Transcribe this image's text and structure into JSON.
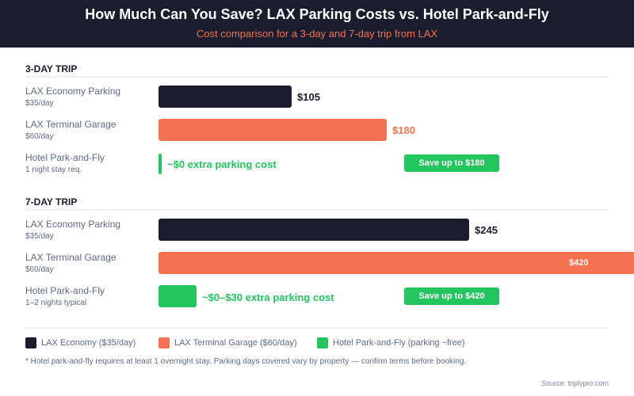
{
  "header": {
    "title": "How Much Can You Save? LAX Parking Costs vs. Hotel Park-and-Fly",
    "subtitle": "Cost comparison for a 3-day and 7-day trip from LAX"
  },
  "colors": {
    "economy": "#1b1c2e",
    "terminal": "#f4724f",
    "hotel": "#22c55e"
  },
  "chart_data": {
    "type": "bar",
    "orientation": "horizontal",
    "title": "How Much Can You Save? LAX Parking Costs vs. Hotel Park-and-Fly",
    "groups": [
      {
        "name": "3-DAY TRIP",
        "rows": [
          {
            "label": "LAX Economy Parking",
            "sub": "$35/day",
            "value": 105,
            "value_label": "$105",
            "series": "economy"
          },
          {
            "label": "LAX Terminal Garage",
            "sub": "$60/day",
            "value": 180,
            "value_label": "$180",
            "series": "terminal"
          },
          {
            "label": "Hotel Park-and-Fly",
            "sub": "1 night stay req.",
            "value": 0,
            "value_label": "~$0 extra parking cost",
            "series": "hotel",
            "save": "Save up to $180"
          }
        ]
      },
      {
        "name": "7-DAY TRIP",
        "rows": [
          {
            "label": "LAX Economy Parking",
            "sub": "$35/day",
            "value": 245,
            "value_label": "$245",
            "series": "economy"
          },
          {
            "label": "LAX Terminal Garage",
            "sub": "$60/day",
            "value": 420,
            "value_label": "$420",
            "series": "terminal",
            "label_inside": true
          },
          {
            "label": "Hotel Park-and-Fly",
            "sub": "1–2 nights typical",
            "value": 30,
            "value_label": "~$0–$30 extra parking cost",
            "series": "hotel",
            "save": "Save up to $420"
          }
        ]
      }
    ],
    "legend": [
      {
        "label": "LAX Economy ($35/day)",
        "series": "economy"
      },
      {
        "label": "LAX Terminal Garage ($60/day)",
        "series": "terminal"
      },
      {
        "label": "Hotel Park-and-Fly (parking ~free)",
        "series": "hotel"
      }
    ]
  },
  "footnote": "* Hotel park-and-fly requires at least 1 overnight stay. Parking days covered vary by property — confirm terms before booking.",
  "source": "Source: triplypro.com"
}
